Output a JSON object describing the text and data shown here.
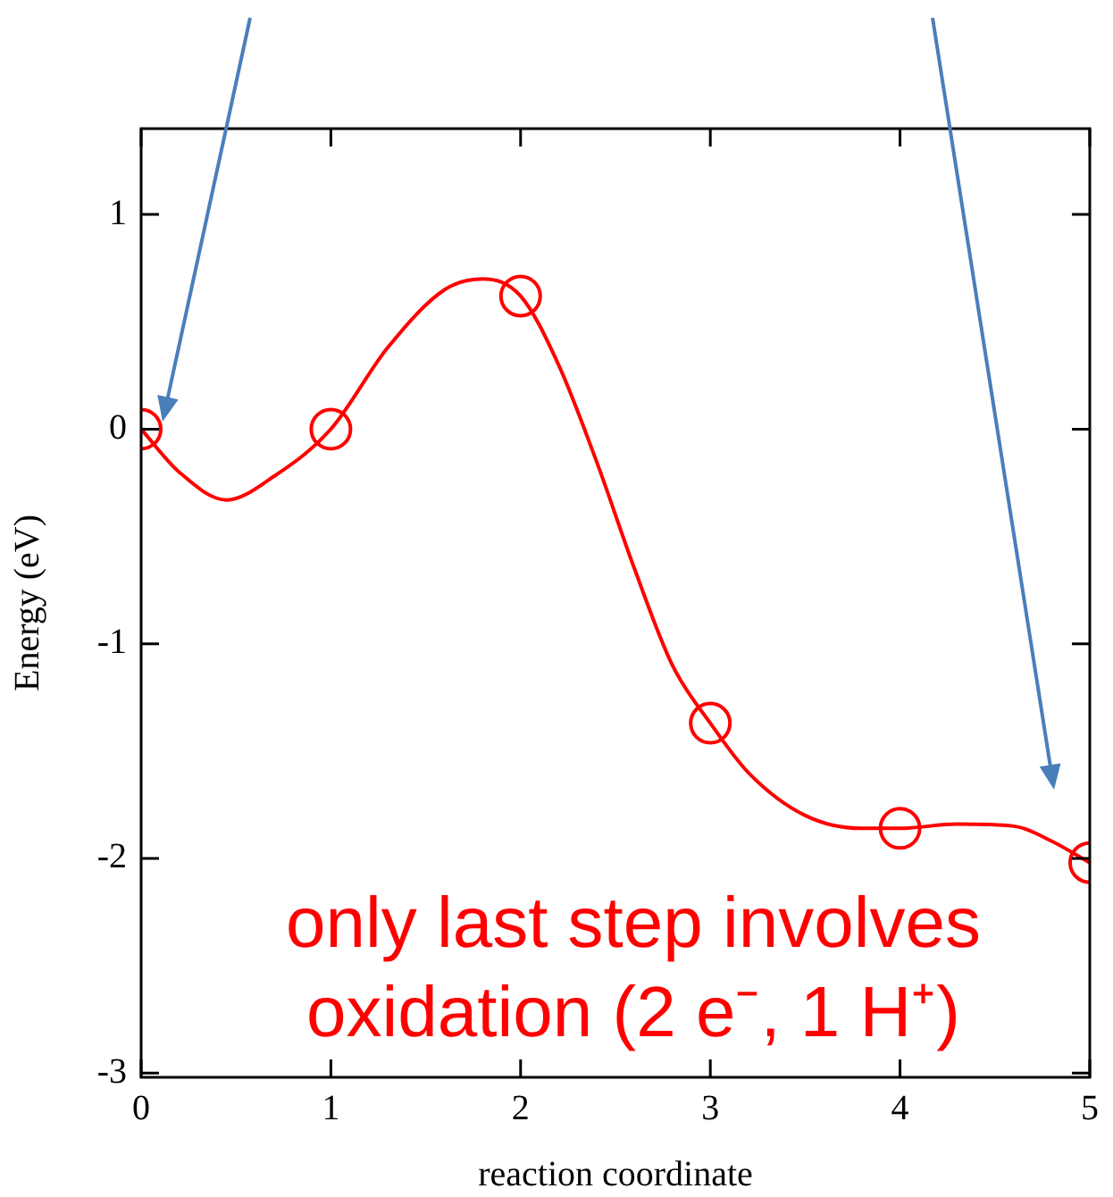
{
  "chart_data": {
    "type": "line",
    "xlabel": "reaction coordinate",
    "ylabel": "Energy (eV)",
    "xlim": [
      0,
      5
    ],
    "ylim": [
      -3.02,
      1.4
    ],
    "xticks": [
      0,
      1,
      2,
      3,
      4,
      5
    ],
    "yticks": [
      -3,
      -2,
      -1,
      0,
      1
    ],
    "grid": false,
    "legend": false,
    "series": [
      {
        "type": "line",
        "color": "#ff0000",
        "marker": "none",
        "line_style": "solid",
        "x": [
          0,
          0.2,
          0.45,
          0.7,
          1,
          1.3,
          1.6,
          1.8,
          2,
          2.2,
          2.4,
          2.6,
          2.8,
          3,
          3.2,
          3.5,
          3.8,
          4,
          4.3,
          4.6,
          4.8,
          5
        ],
        "values": [
          0,
          -0.2,
          -0.33,
          -0.22,
          0,
          0.38,
          0.65,
          0.7,
          0.62,
          0.3,
          -0.15,
          -0.65,
          -1.1,
          -1.37,
          -1.6,
          -1.8,
          -1.86,
          -1.86,
          -1.84,
          -1.85,
          -1.92,
          -2.02
        ]
      },
      {
        "type": "scatter",
        "color": "#ff0000",
        "marker": "circle",
        "x": [
          0,
          1,
          2,
          3,
          4,
          5
        ],
        "values": [
          0,
          0,
          0.62,
          -1.37,
          -1.86,
          -2.02
        ]
      }
    ],
    "annotations": [
      "only last step involves\noxidation (2 e⁻, 1 H⁺)"
    ]
  }
}
